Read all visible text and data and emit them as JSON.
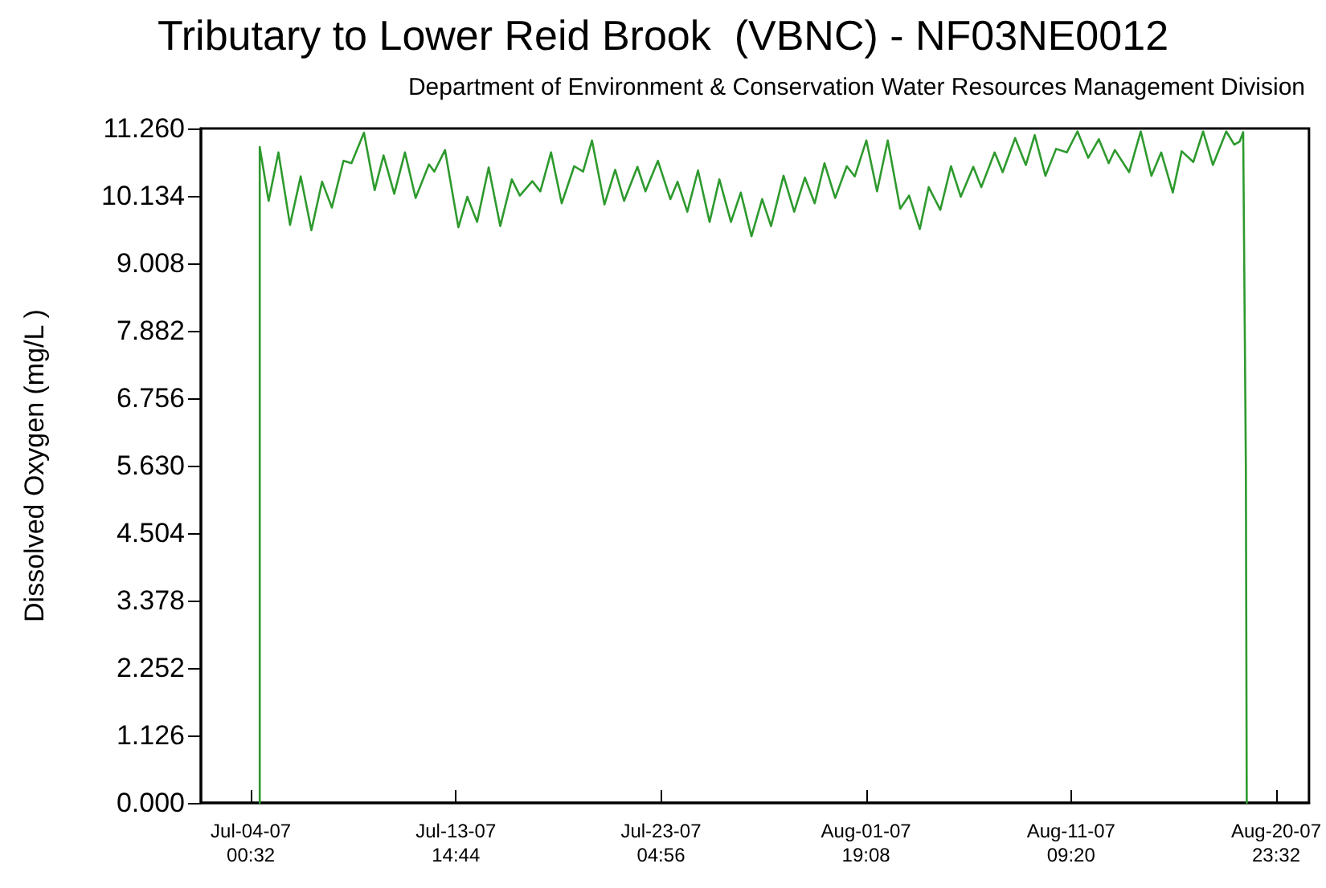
{
  "chart_data": {
    "type": "line",
    "title": "Tributary to Lower Reid Brook  (VBNC) - NF03NE0012",
    "subtitle": "Department of Environment & Conservation Water Resources Management Division",
    "ylabel": "Dissolved Oxygen (mg/L )",
    "x": [
      "--07-04T10:32",
      "--07-04T10:32",
      "--07-04T20:32",
      "--07-05T07:32",
      "--07-05T20:32",
      "--07-06T08:32",
      "--07-06T20:32",
      "--07-07T08:32",
      "--07-07T19:32",
      "--07-08T08:32",
      "--07-08T17:32",
      "--07-09T07:32",
      "--07-09T19:32",
      "--07-10T05:32",
      "--07-10T17:32",
      "--07-11T05:32",
      "--07-11T17:32",
      "--07-12T08:32",
      "--07-12T14:32",
      "--07-13T02:32",
      "--07-13T17:32",
      "--07-14T03:32",
      "--07-14T14:32",
      "--07-15T03:32",
      "--07-15T16:32",
      "--07-16T05:32",
      "--07-16T14:32",
      "--07-17T04:32",
      "--07-17T13:32",
      "--07-18T01:32",
      "--07-18T13:32",
      "--07-19T03:32",
      "--07-19T13:32",
      "--07-19T23:32",
      "--07-20T13:32",
      "--07-21T01:32",
      "--07-21T11:32",
      "--07-22T02:32",
      "--07-22T11:32",
      "--07-23T01:32",
      "--07-23T15:32",
      "--07-23T23:32",
      "--07-24T10:32",
      "--07-24T22:32",
      "--07-25T11:32",
      "--07-25T22:32",
      "--07-26T11:32",
      "--07-26T22:32",
      "--07-27T10:32",
      "--07-27T22:32",
      "--07-28T08:32",
      "--07-28T22:32",
      "--07-29T10:32",
      "--07-29T22:32",
      "--07-30T09:32",
      "--07-30T20:32",
      "--07-31T08:32",
      "--07-31T21:32",
      "--08-01T06:32",
      "--08-01T19:32",
      "--08-02T07:32",
      "--08-02T19:32",
      "--08-03T09:32",
      "--08-03T19:32",
      "--08-04T07:32",
      "--08-04T17:32",
      "--08-05T06:32",
      "--08-05T18:32",
      "--08-06T05:32",
      "--08-06T19:32",
      "--08-07T04:32",
      "--08-07T19:32",
      "--08-08T04:32",
      "--08-08T18:32",
      "--08-09T06:32",
      "--08-09T16:32",
      "--08-10T04:32",
      "--08-10T16:32",
      "--08-11T04:32",
      "--08-11T16:32",
      "--08-12T04:32",
      "--08-12T16:32",
      "--08-13T03:32",
      "--08-13T10:32",
      "--08-14T02:32",
      "--08-14T15:32",
      "--08-15T03:32",
      "--08-15T14:32",
      "--08-16T03:32",
      "--08-16T13:32",
      "--08-17T02:32",
      "--08-17T13:32",
      "--08-18T00:32",
      "--08-18T15:32",
      "--08-19T00:32",
      "--08-19T06:32",
      "--08-19T10:32",
      "--08-19T13:32",
      "--08-19T14:32"
    ],
    "series": [
      {
        "color": "#2e9a2e",
        "values": [
          0,
          10.95,
          10.05,
          10.86,
          9.65,
          10.46,
          9.56,
          10.37,
          9.94,
          10.72,
          10.68,
          11.19,
          10.23,
          10.81,
          10.17,
          10.86,
          10.1,
          10.66,
          10.54,
          10.9,
          9.61,
          10.12,
          9.7,
          10.61,
          9.63,
          10.41,
          10.14,
          10.38,
          10.21,
          10.86,
          10.01,
          10.63,
          10.54,
          11.06,
          9.99,
          10.57,
          10.05,
          10.62,
          10.21,
          10.72,
          10.08,
          10.37,
          9.87,
          10.56,
          9.7,
          10.41,
          9.7,
          10.19,
          9.46,
          10.08,
          9.63,
          10.47,
          9.87,
          10.44,
          10.01,
          10.68,
          10.1,
          10.63,
          10.46,
          11.06,
          10.21,
          11.06,
          9.92,
          10.14,
          9.58,
          10.28,
          9.9,
          10.63,
          10.12,
          10.62,
          10.28,
          10.86,
          10.53,
          11.1,
          10.65,
          11.15,
          10.47,
          10.92,
          10.86,
          11.21,
          10.77,
          11.08,
          10.68,
          10.9,
          10.53,
          11.21,
          10.47,
          10.86,
          10.19,
          10.88,
          10.7,
          11.21,
          10.65,
          11.21,
          10.99,
          11.04,
          11.2,
          5.63,
          0
        ]
      }
    ],
    "xlim": [
      "--07-01T16:30",
      "--08-22T12:25"
    ],
    "xticks": [
      {
        "value": "--07-04T00:32",
        "label": "Jul-04-07\n00:32"
      },
      {
        "value": "--07-13T14:44",
        "label": "Jul-13-07\n14:44"
      },
      {
        "value": "--07-23T04:56",
        "label": "Jul-23-07\n04:56"
      },
      {
        "value": "--08-01T19:08",
        "label": "Aug-01-07\n19:08"
      },
      {
        "value": "--08-11T09:20",
        "label": "Aug-11-07\n09:20"
      },
      {
        "value": "--08-20T23:32",
        "label": "Aug-20-07\n23:32"
      }
    ],
    "ylim": [
      0,
      11.26
    ],
    "yticks": [
      {
        "value": 0,
        "label": "0.000"
      },
      {
        "value": 1.126,
        "label": "1.126"
      },
      {
        "value": 2.252,
        "label": "2.252"
      },
      {
        "value": 3.378,
        "label": "3.378"
      },
      {
        "value": 4.504,
        "label": "4.504"
      },
      {
        "value": 5.63,
        "label": "5.630"
      },
      {
        "value": 6.756,
        "label": "6.756"
      },
      {
        "value": 7.882,
        "label": "7.882"
      },
      {
        "value": 9.008,
        "label": "9.008"
      },
      {
        "value": 10.134,
        "label": "10.134"
      },
      {
        "value": 11.26,
        "label": "11.260"
      }
    ],
    "grid": false,
    "marker": "none",
    "line_style": "solid"
  }
}
